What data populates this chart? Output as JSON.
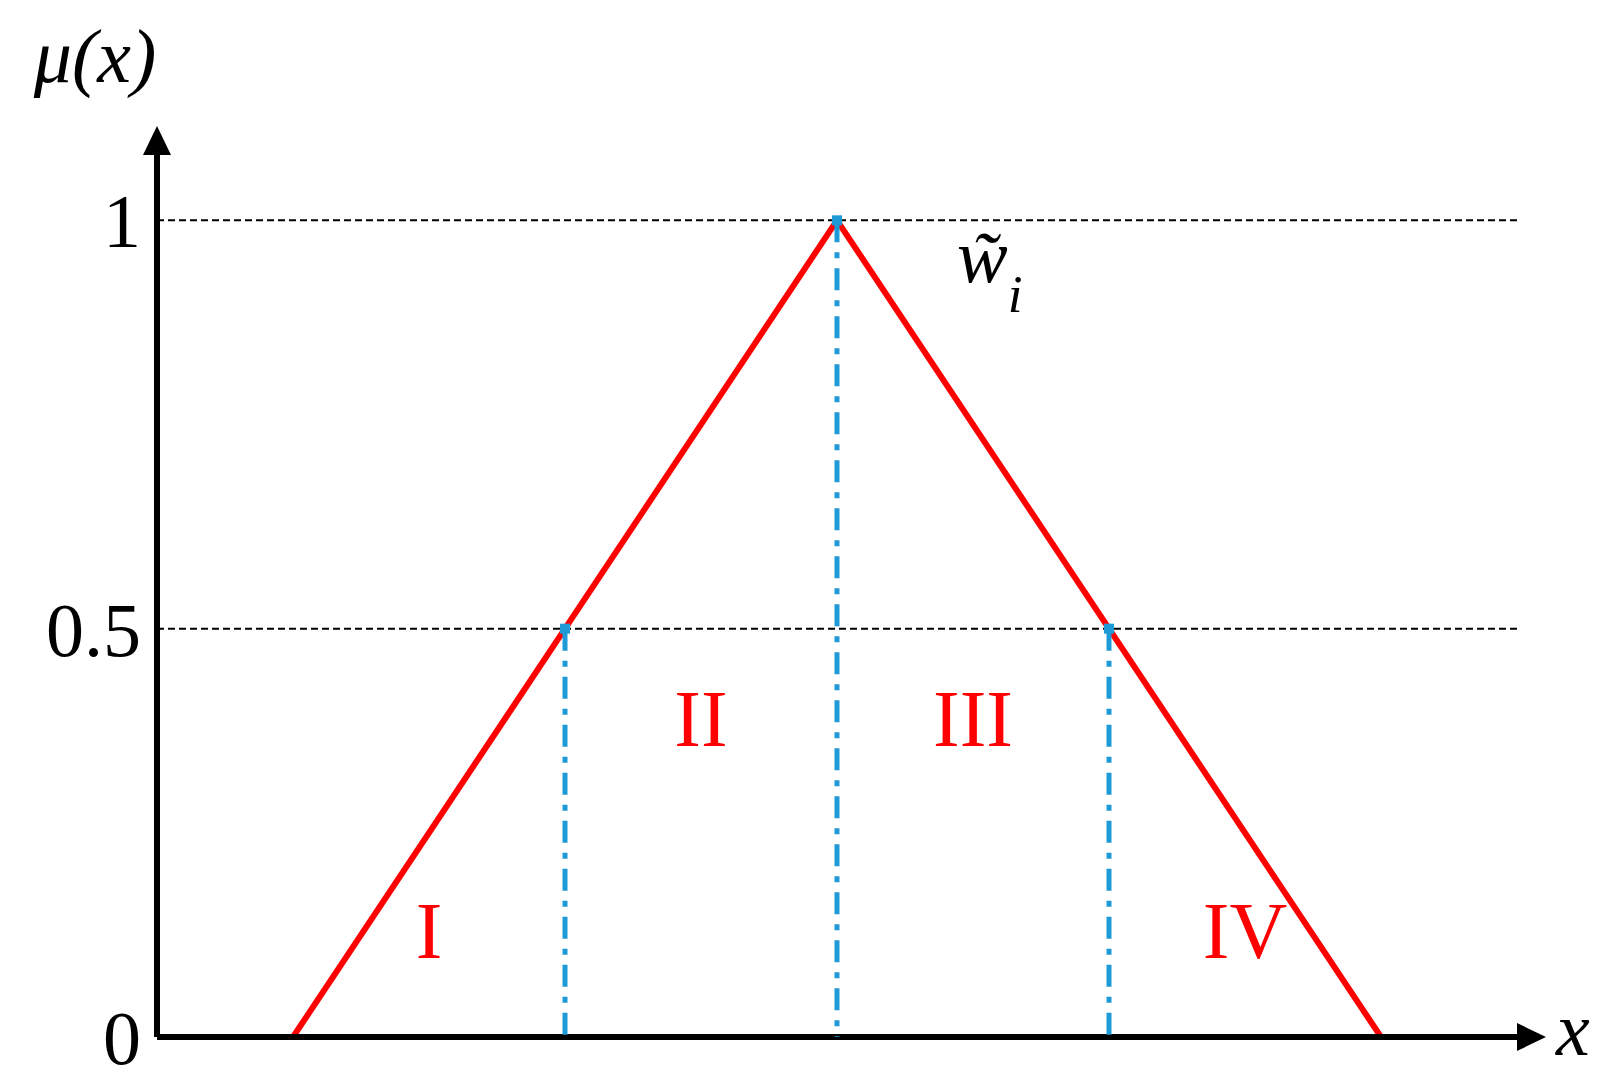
{
  "chart_data": {
    "type": "line",
    "ylabel": "μ(x)",
    "xlabel": "x",
    "categories": [
      null,
      null,
      null,
      null,
      null
    ],
    "ylim": [
      0,
      1.08
    ],
    "yticks": [
      0,
      0.5,
      1
    ],
    "marker": "none",
    "line_style": "solid",
    "series": [
      {
        "name": "w̃$_{i}$",
        "color": "#ff0000",
        "values": [
          0,
          0.5,
          1,
          0.5,
          0
        ]
      },
      {
        "type": "lollipop",
        "color": "#1e9ad6",
        "line_style": "dashed",
        "marker": "square",
        "values": [
          null,
          0.5,
          1,
          0.5,
          null
        ]
      }
    ],
    "ref_lines": [
      {
        "axis": "y",
        "value": 1,
        "color": "#000000",
        "line_style": "dotted"
      },
      {
        "axis": "y",
        "value": 0.5,
        "color": "#000000",
        "line_style": "dotted"
      }
    ],
    "annotations": [
      "I",
      "II",
      "III",
      "IV"
    ]
  }
}
